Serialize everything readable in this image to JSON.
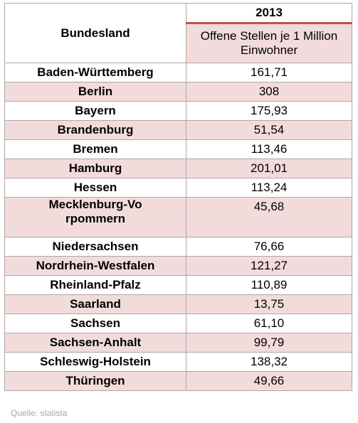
{
  "header": {
    "state_label": "Bundesland",
    "year": "2013",
    "metric_label": "Offene Stellen je 1 Million Einwohner"
  },
  "rows": [
    {
      "state": "Baden-Württemberg",
      "value": "161,71"
    },
    {
      "state": "Berlin",
      "value": "308"
    },
    {
      "state": "Bayern",
      "value": "175,93"
    },
    {
      "state": "Brandenburg",
      "value": "51,54"
    },
    {
      "state": "Bremen",
      "value": "113,46"
    },
    {
      "state": "Hamburg",
      "value": "201,01"
    },
    {
      "state": "Hessen",
      "value": "113,24"
    },
    {
      "state": "Mecklenburg-Vorpommern",
      "value": "45,68"
    },
    {
      "state": "Niedersachsen",
      "value": "76,66"
    },
    {
      "state": "Nordrhein-Westfalen",
      "value": "121,27"
    },
    {
      "state": "Rheinland-Pfalz",
      "value": "110,89"
    },
    {
      "state": "Saarland",
      "value": "13,75"
    },
    {
      "state": "Sachsen",
      "value": "61,10"
    },
    {
      "state": "Sachsen-Anhalt",
      "value": "99,79"
    },
    {
      "state": "Schleswig-Holstein",
      "value": "138,32"
    },
    {
      "state": "Thüringen",
      "value": "49,66"
    }
  ],
  "source": "Quelle: statista",
  "colors": {
    "accent": "#c0504d",
    "alt_row": "#f2dcdb",
    "border": "#b0a5a5",
    "source_text": "#a6a6a6"
  }
}
